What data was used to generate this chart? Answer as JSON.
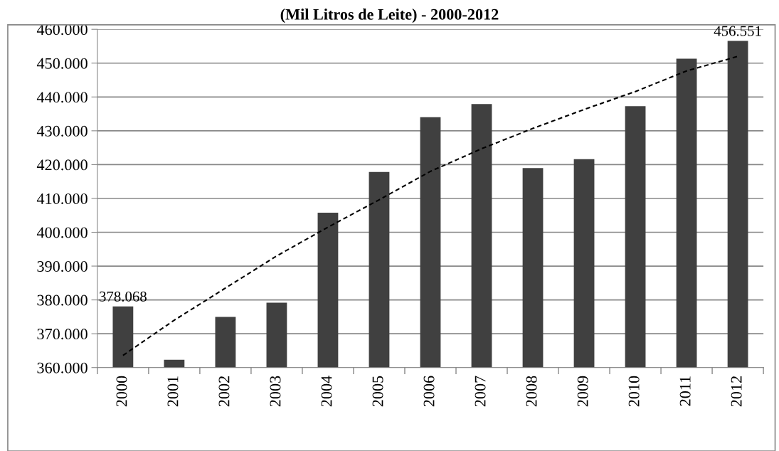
{
  "chart_data": {
    "type": "bar",
    "title": "(Mil Litros de Leite) - 2000-2012",
    "categories": [
      "2000",
      "2001",
      "2002",
      "2003",
      "2004",
      "2005",
      "2006",
      "2007",
      "2008",
      "2009",
      "2010",
      "2011",
      "2012"
    ],
    "series": [
      {
        "color": "#404040",
        "values": [
          378.068,
          362.3,
          375.0,
          379.2,
          405.8,
          417.8,
          434.0,
          437.9,
          419.0,
          421.6,
          437.3,
          451.3,
          456.551
        ],
        "value_labels": [
          "378.068",
          null,
          null,
          null,
          null,
          null,
          null,
          null,
          null,
          null,
          null,
          null,
          "456.551"
        ]
      },
      {
        "type": "line",
        "color": "#000000",
        "line_style": "dashed",
        "values": [
          363.6,
          374.0,
          383.5,
          393.0,
          401.5,
          409.6,
          418.0,
          424.7,
          430.7,
          436.3,
          441.6,
          447.7,
          452.0
        ]
      }
    ],
    "ylim": [
      360,
      460
    ],
    "yticks": [
      {
        "value": 360,
        "label": "360.000"
      },
      {
        "value": 370,
        "label": "370.000"
      },
      {
        "value": 380,
        "label": "380.000"
      },
      {
        "value": 390,
        "label": "390.000"
      },
      {
        "value": 400,
        "label": "400.000"
      },
      {
        "value": 410,
        "label": "410.000"
      },
      {
        "value": 420,
        "label": "420.000"
      },
      {
        "value": 430,
        "label": "430.000"
      },
      {
        "value": 440,
        "label": "440.000"
      },
      {
        "value": 450,
        "label": "450.000"
      },
      {
        "value": 460,
        "label": "460.000"
      }
    ],
    "grid": "y"
  }
}
